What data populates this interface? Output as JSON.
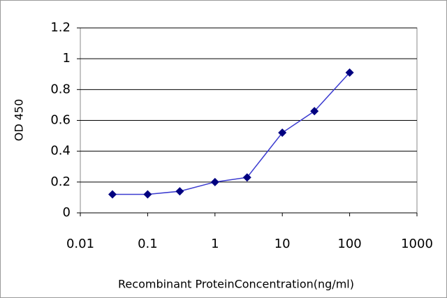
{
  "chart_data": {
    "type": "line",
    "x_label": "Recombinant ProteinConcentration(ng/ml)",
    "y_label": "OD 450",
    "x": [
      0.03,
      0.1,
      0.3,
      1,
      3,
      10,
      30,
      100
    ],
    "series": [
      {
        "color": "#000080",
        "values": [
          0.12,
          0.12,
          0.14,
          0.2,
          0.23,
          0.52,
          0.66,
          0.91
        ]
      }
    ],
    "xscale": "log",
    "xlim": [
      0.01,
      1000
    ],
    "xticks": [
      0.01,
      0.1,
      1,
      10,
      100,
      1000
    ],
    "ylim": [
      0,
      1.2
    ],
    "yticks": [
      0,
      0.2,
      0.4,
      0.6,
      0.8,
      1,
      1.2
    ],
    "grid": true
  }
}
